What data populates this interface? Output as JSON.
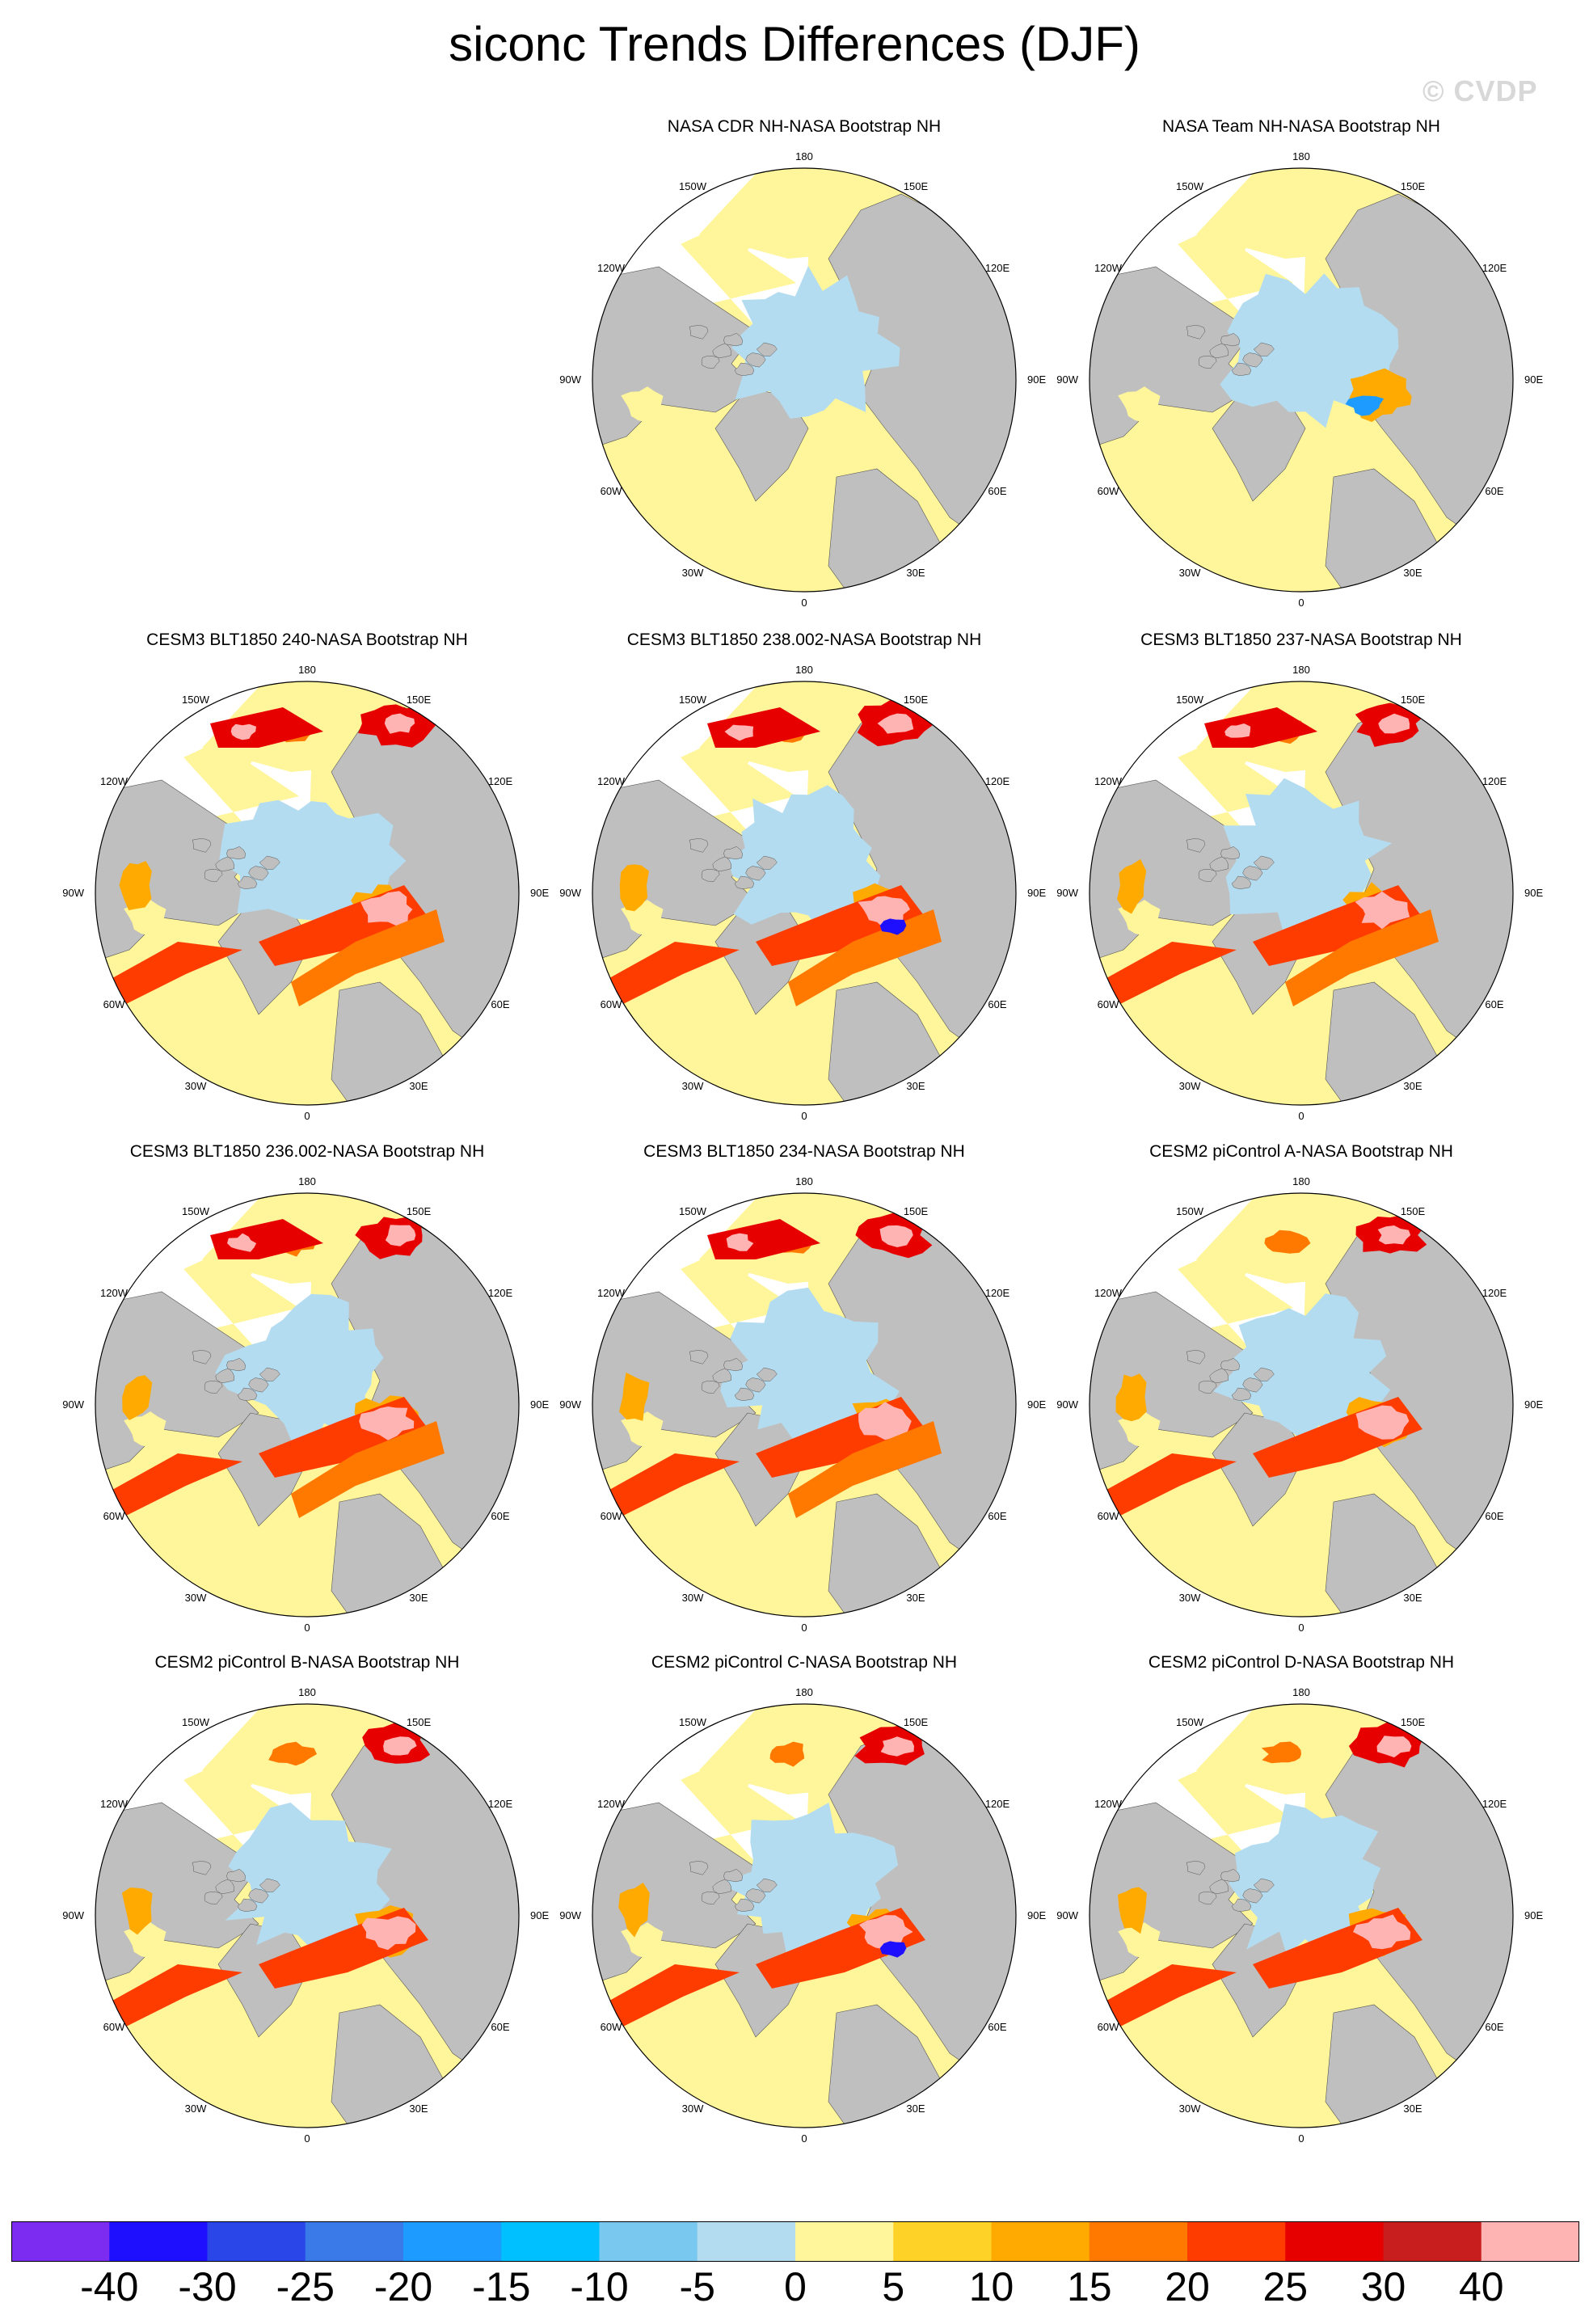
{
  "page": {
    "title": "siconc Trends Differences (DJF)",
    "watermark": "© CVDP"
  },
  "chart_data": {
    "type": "polar-map-panels",
    "title": "siconc Trends Differences (DJF)",
    "variable": "siconc",
    "season": "DJF",
    "projection": "north polar stereographic",
    "longitude_labels": [
      "180",
      "150E",
      "120E",
      "90E",
      "60E",
      "30E",
      "0",
      "30W",
      "60W",
      "90W",
      "120W",
      "150W"
    ],
    "panels": [
      {
        "title": "NASA CDR NH-NASA Bootstrap NH",
        "blank": false,
        "row": 0,
        "col": 1,
        "strength": 0
      },
      {
        "title": "NASA Team NH-NASA Bootstrap NH",
        "blank": false,
        "row": 0,
        "col": 2,
        "strength": 1
      },
      {
        "title": "CESM3 BLT1850 240-NASA Bootstrap NH",
        "row": 1,
        "col": 0,
        "strength": 3
      },
      {
        "title": "CESM3 BLT1850 238.002-NASA Bootstrap NH",
        "row": 1,
        "col": 1,
        "strength": 3
      },
      {
        "title": "CESM3 BLT1850 237-NASA Bootstrap NH",
        "row": 1,
        "col": 2,
        "strength": 3
      },
      {
        "title": "CESM3 BLT1850 236.002-NASA Bootstrap NH",
        "row": 2,
        "col": 0,
        "strength": 3
      },
      {
        "title": "CESM3 BLT1850 234-NASA Bootstrap NH",
        "row": 2,
        "col": 1,
        "strength": 3
      },
      {
        "title": "CESM2 piControl A-NASA Bootstrap NH",
        "row": 2,
        "col": 2,
        "strength": 2
      },
      {
        "title": "CESM2 piControl B-NASA Bootstrap NH",
        "row": 3,
        "col": 0,
        "strength": 2
      },
      {
        "title": "CESM2 piControl C-NASA Bootstrap NH",
        "row": 3,
        "col": 1,
        "strength": 2
      },
      {
        "title": "CESM2 piControl D-NASA Bootstrap NH",
        "row": 3,
        "col": 2,
        "strength": 2
      }
    ],
    "colorbar": {
      "levels": [
        "-40",
        "-30",
        "-25",
        "-20",
        "-15",
        "-10",
        "-5",
        "0",
        "5",
        "10",
        "15",
        "20",
        "25",
        "30",
        "40"
      ],
      "colors": [
        "#7c2cf0",
        "#1e10ff",
        "#2a46e8",
        "#3a7ae8",
        "#1e9bff",
        "#00c0ff",
        "#78c8f0",
        "#b4dcf0",
        "#fff59a",
        "#ffd228",
        "#ffaa00",
        "#ff7800",
        "#ff3c00",
        "#e60000",
        "#c81e1e",
        "#ffb4b4"
      ]
    },
    "map_colors": {
      "land": "#bfbfbf",
      "missing": "#ffffff",
      "near_zero_positive": "#fff59a",
      "near_zero_negative": "#b4dcf0"
    }
  }
}
